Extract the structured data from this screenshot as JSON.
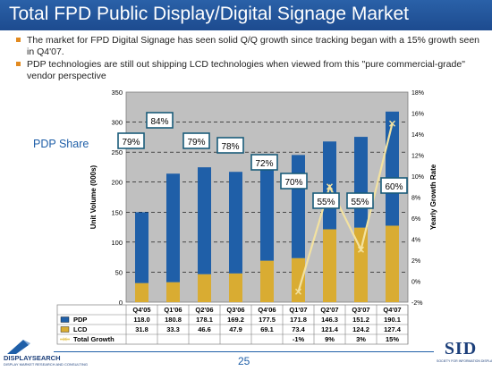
{
  "header": {
    "title": "Total FPD Public Display/Digital Signage Market"
  },
  "bullets": [
    "The market for FPD Digital Signage has seen solid Q/Q growth since tracking began with a 15% growth seen in Q4'07.",
    "PDP technologies are still out shipping LCD technologies when viewed from this \"pure commercial-grade\" vendor perspective"
  ],
  "annotation": {
    "pdp_share_label": "PDP Share"
  },
  "chart_data": {
    "type": "bar",
    "stacked": true,
    "categories": [
      "Q4'05",
      "Q1'06",
      "Q2'06",
      "Q3'06",
      "Q4'06",
      "Q1'07",
      "Q2'07",
      "Q3'07",
      "Q4'07"
    ],
    "series": [
      {
        "name": "PDP",
        "values": [
          118.0,
          180.8,
          178.1,
          169.2,
          177.5,
          171.8,
          146.3,
          151.2,
          190.1
        ],
        "color": "#1f5fa8",
        "axis": "left"
      },
      {
        "name": "LCD",
        "values": [
          31.8,
          33.3,
          46.6,
          47.9,
          69.1,
          73.4,
          121.4,
          124.2,
          127.4
        ],
        "color": "#d9ac32",
        "axis": "left"
      },
      {
        "name": "Total Growth",
        "type": "line",
        "values": [
          null,
          null,
          null,
          null,
          null,
          -1,
          9,
          3,
          15
        ],
        "color": "#f3e2a0",
        "axis": "right",
        "labels": [
          "",
          "",
          "",
          "",
          "",
          "-1%",
          "9%",
          "3%",
          "15%"
        ]
      }
    ],
    "pdp_share_labels": [
      "79%",
      "84%",
      "79%",
      "78%",
      "72%",
      "70%",
      "55%",
      "55%",
      "60%"
    ],
    "ylabel": "Unit Volume (000s)",
    "y2label": "Yearly Growth Rate",
    "ylim": [
      0,
      350
    ],
    "yticks": [
      0,
      50,
      100,
      150,
      200,
      250,
      300,
      350
    ],
    "y2lim": [
      -2,
      18
    ],
    "y2ticks": [
      "-2%",
      "0%",
      "2%",
      "4%",
      "6%",
      "8%",
      "10%",
      "12%",
      "14%",
      "16%",
      "18%"
    ],
    "grid": true,
    "legend": "table-below"
  },
  "footer": {
    "page_number": "25",
    "left_logo": "DISPLAYSEARCH",
    "left_logo_tagline": "DISPLAY MARKET RESEARCH AND CONSULTING",
    "right_logo": "SID",
    "right_logo_tagline": "SOCIETY FOR INFORMATION DISPLAY"
  },
  "colors": {
    "header_bg": "#1f5fa8",
    "plot_bg": "#c0c0c0",
    "accent": "#e28a1f",
    "box_border": "#1a5c7a"
  }
}
